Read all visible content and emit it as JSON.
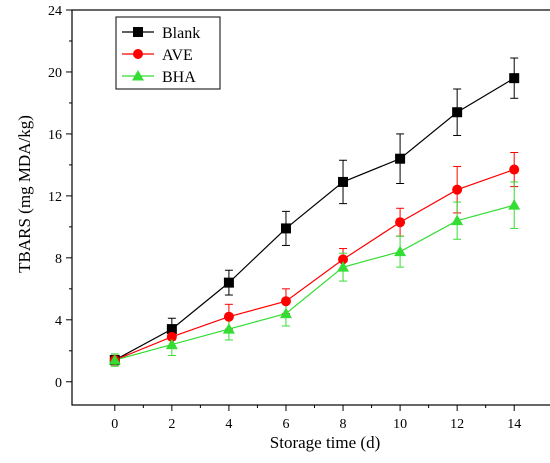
{
  "chart_data": {
    "type": "line",
    "xlabel": "Storage time (d)",
    "ylabel": "TBARS (mg MDA/kg)",
    "x": [
      0,
      2,
      4,
      6,
      8,
      10,
      12,
      14
    ],
    "xlim": [
      -1.5,
      15.5
    ],
    "ylim": [
      -1.5,
      24
    ],
    "xticks": [
      0,
      2,
      4,
      6,
      8,
      10,
      12,
      14
    ],
    "yticks": [
      0,
      4,
      8,
      12,
      16,
      20,
      24
    ],
    "grid": false,
    "legend_position": "top-left",
    "series": [
      {
        "name": "Blank",
        "color": "#000000",
        "marker": "square",
        "values": [
          1.4,
          3.4,
          6.4,
          9.9,
          12.9,
          14.4,
          17.4,
          19.6
        ],
        "errors": [
          0.3,
          0.7,
          0.8,
          1.1,
          1.4,
          1.6,
          1.5,
          1.3
        ]
      },
      {
        "name": "AVE",
        "color": "#ff0000",
        "marker": "circle",
        "values": [
          1.4,
          2.9,
          4.2,
          5.2,
          7.9,
          10.3,
          12.4,
          13.7
        ],
        "errors": [
          0.3,
          0.6,
          0.8,
          0.8,
          0.7,
          0.9,
          1.5,
          1.1
        ]
      },
      {
        "name": "BHA",
        "color": "#33dd33",
        "marker": "triangle",
        "values": [
          1.4,
          2.4,
          3.4,
          4.4,
          7.4,
          8.4,
          10.4,
          11.4
        ],
        "errors": [
          0.4,
          0.7,
          0.7,
          0.8,
          0.9,
          1.0,
          1.2,
          1.5
        ]
      }
    ]
  }
}
